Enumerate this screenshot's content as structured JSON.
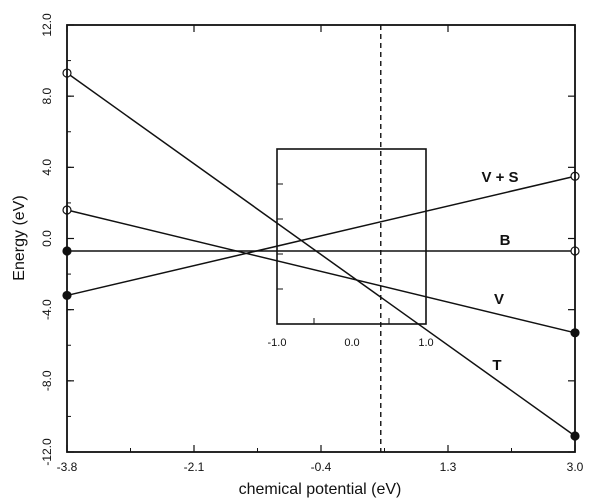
{
  "chart_data": {
    "type": "line",
    "xlabel": "chemical potential (eV)",
    "ylabel": "Energy (eV)",
    "xlim": [
      -3.8,
      3.0
    ],
    "ylim": [
      -12.0,
      12.0
    ],
    "x_ticks": [
      "-3.8",
      "-2.1",
      "-0.4",
      "1.3",
      "3.0"
    ],
    "y_ticks": [
      "12.0",
      "8.0",
      "4.0",
      "0.0",
      "-4.0",
      "-8.0",
      "-12.0"
    ],
    "grid": false,
    "dashed_line_x": 0.4,
    "series": [
      {
        "name": "T",
        "x": [
          -3.8,
          3.0
        ],
        "y": [
          9.3,
          -11.1
        ],
        "start_marker": "open",
        "end_marker": "filled"
      },
      {
        "name": "V + S",
        "x": [
          -3.8,
          3.0
        ],
        "y": [
          -3.2,
          3.5
        ],
        "start_marker": "filled",
        "end_marker": "open"
      },
      {
        "name": "B",
        "x": [
          -3.8,
          3.0
        ],
        "y": [
          -0.7,
          -0.7
        ],
        "start_marker": "filled",
        "end_marker": "open"
      },
      {
        "name": "V",
        "x": [
          -3.8,
          3.0
        ],
        "y": [
          1.6,
          -5.3
        ],
        "start_marker": "open",
        "end_marker": "filled"
      }
    ],
    "inset": {
      "x_range": [
        -1.0,
        1.0
      ],
      "y_range": [
        -5.0,
        5.0
      ],
      "x_ticks": [
        "-1.0",
        "0.0",
        "1.0"
      ]
    }
  }
}
